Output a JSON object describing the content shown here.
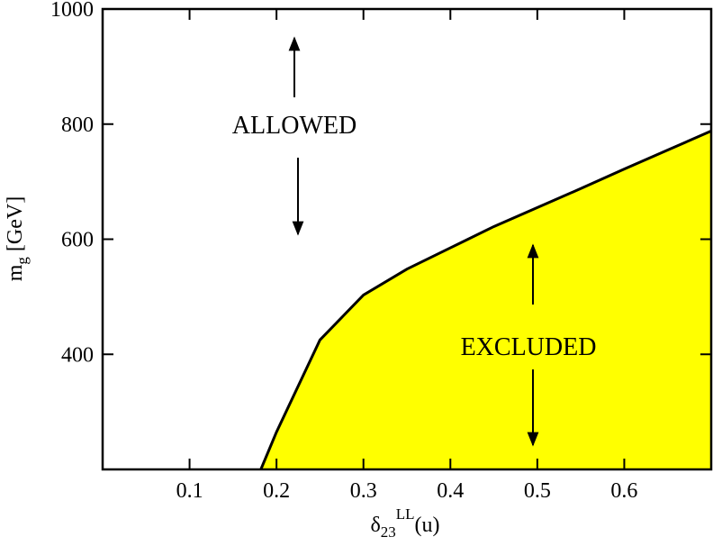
{
  "chart_data": {
    "type": "area",
    "x": [
      0.182,
      0.2,
      0.25,
      0.3,
      0.35,
      0.4,
      0.45,
      0.5,
      0.55,
      0.6,
      0.65,
      0.7
    ],
    "values": [
      200,
      265,
      425,
      503,
      548,
      585,
      622,
      655,
      688,
      722,
      755,
      788
    ],
    "color": "#ffff00",
    "line_color": "#000000",
    "xlim": [
      0,
      0.7
    ],
    "xticks": [
      0.1,
      0.2,
      0.3,
      0.4,
      0.5,
      0.6
    ],
    "ylim": [
      200,
      1000
    ],
    "yticks": [
      400,
      600,
      800,
      1000
    ],
    "xlabel": [
      "δ",
      "23",
      "LL",
      "(u)"
    ],
    "ylabel": [
      "m",
      "g",
      " [GeV]"
    ],
    "annotations": [
      "ALLOWED",
      "EXCLUDED"
    ]
  }
}
